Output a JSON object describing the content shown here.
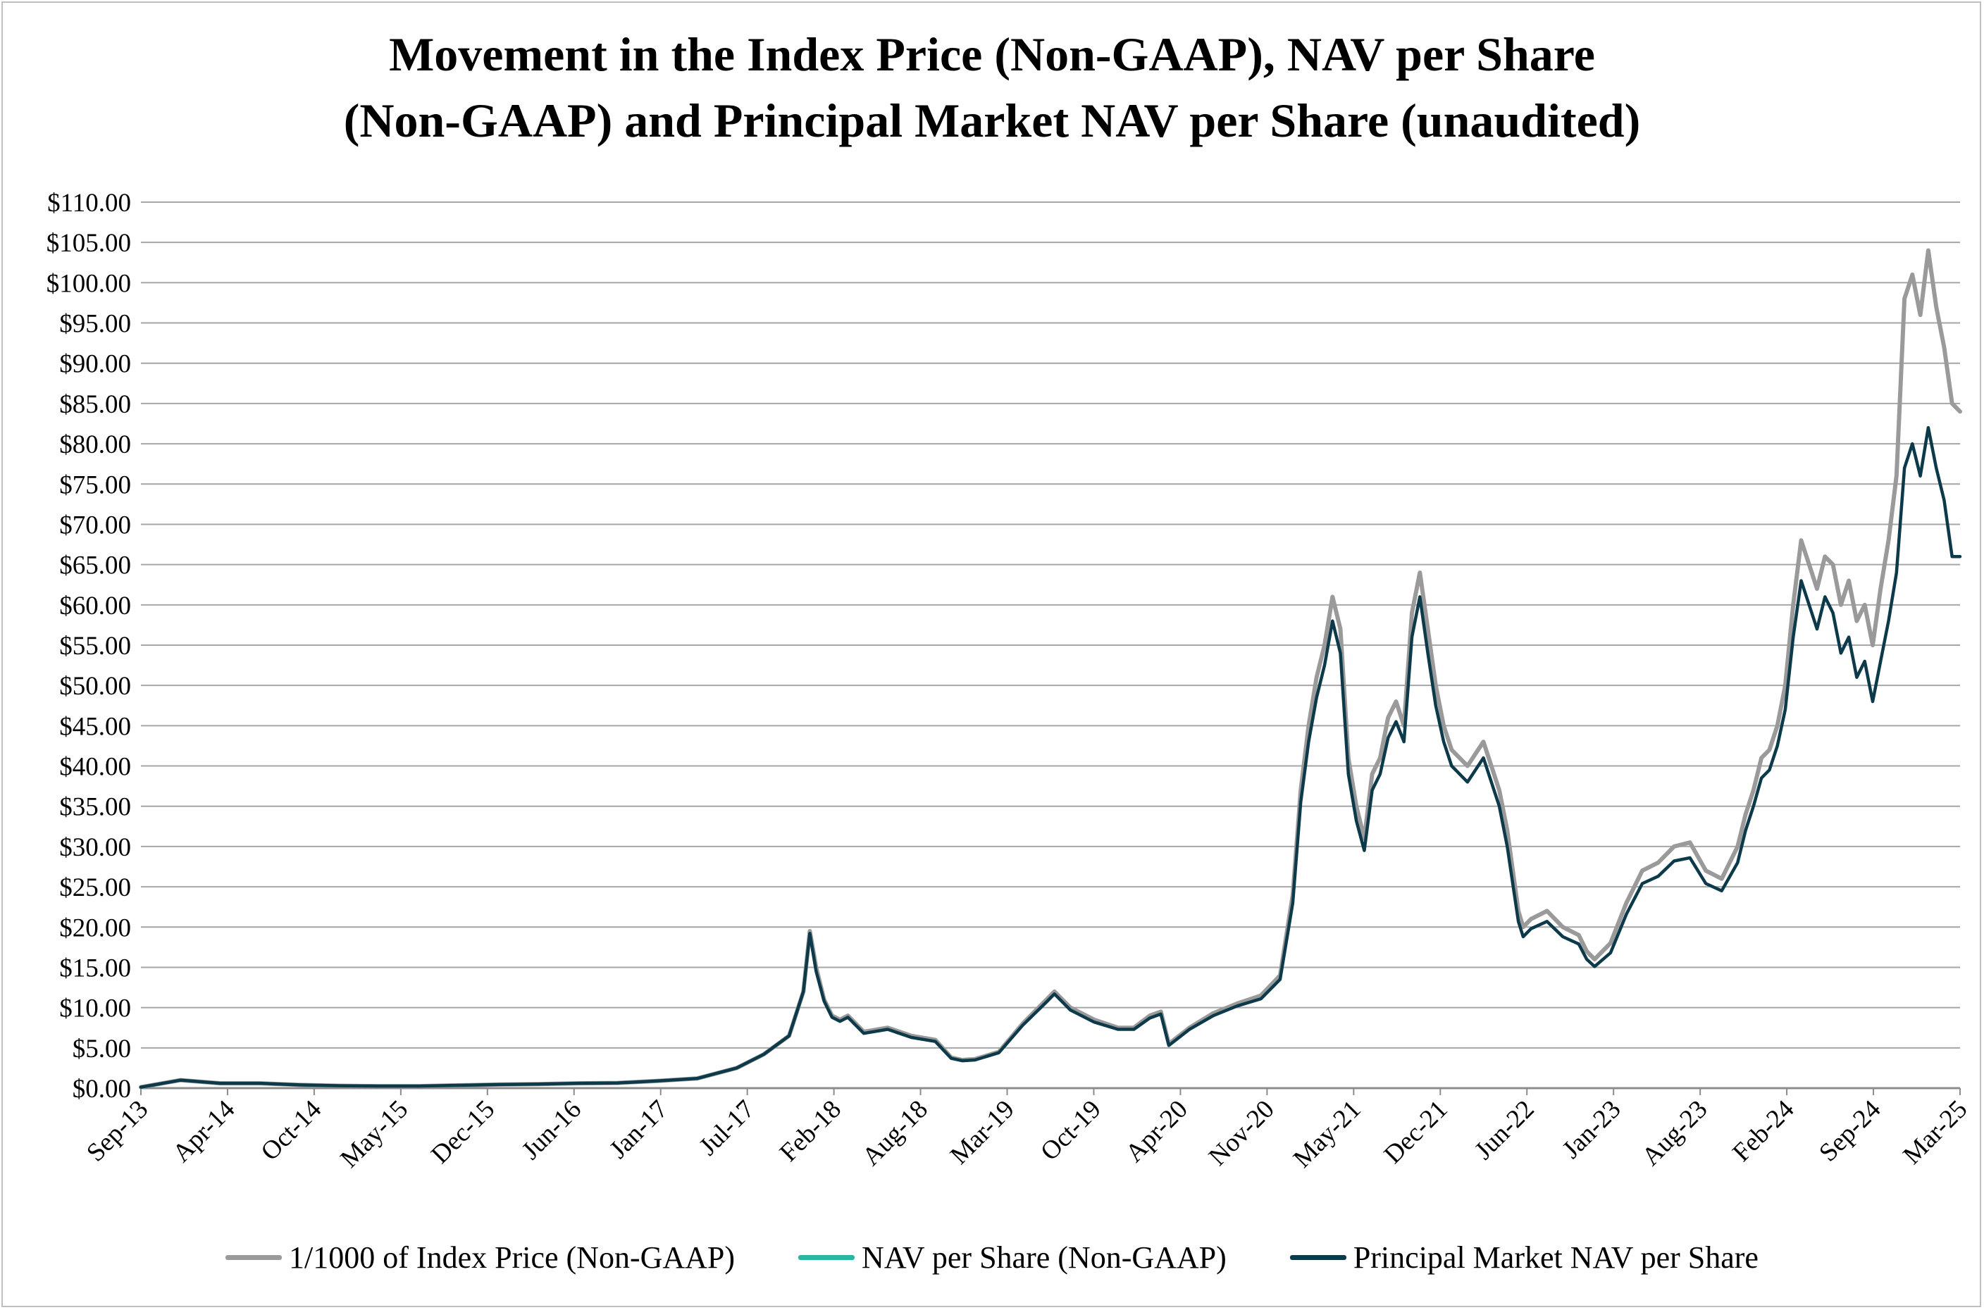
{
  "chart_data": {
    "type": "line",
    "title": "Movement in the Index Price (Non-GAAP), NAV per Share (Non-GAAP) and Principal Market NAV per Share (unaudited)",
    "title_lines": [
      "Movement in the Index Price (Non-GAAP), NAV per Share",
      "(Non-GAAP) and Principal Market NAV per Share (unaudited)"
    ],
    "xlabel": "",
    "ylabel": "",
    "ylim": [
      0,
      110
    ],
    "y_step": 5,
    "y_tick_labels": [
      "$0.00",
      "$5.00",
      "$10.00",
      "$15.00",
      "$20.00",
      "$25.00",
      "$30.00",
      "$35.00",
      "$40.00",
      "$45.00",
      "$50.00",
      "$55.00",
      "$60.00",
      "$65.00",
      "$70.00",
      "$75.00",
      "$80.00",
      "$85.00",
      "$90.00",
      "$95.00",
      "$100.00",
      "$105.00",
      "$110.00"
    ],
    "x_tick_labels": [
      "Sep-13",
      "Apr-14",
      "Oct-14",
      "May-15",
      "Dec-15",
      "Jun-16",
      "Jan-17",
      "Jul-17",
      "Feb-18",
      "Aug-18",
      "Mar-19",
      "Oct-19",
      "Apr-20",
      "Nov-20",
      "May-21",
      "Dec-21",
      "Jun-22",
      "Jan-23",
      "Aug-23",
      "Feb-24",
      "Sep-24",
      "Mar-25"
    ],
    "grid": true,
    "legend_position": "bottom",
    "x": [
      2013.75,
      2014.0,
      2014.25,
      2014.5,
      2014.75,
      2015.0,
      2015.25,
      2015.5,
      2015.75,
      2016.0,
      2016.25,
      2016.5,
      2016.75,
      2017.0,
      2017.25,
      2017.5,
      2017.67,
      2017.83,
      2017.92,
      2017.96,
      2018.0,
      2018.05,
      2018.1,
      2018.15,
      2018.2,
      2018.3,
      2018.45,
      2018.6,
      2018.75,
      2018.85,
      2018.92,
      2019.0,
      2019.15,
      2019.3,
      2019.45,
      2019.5,
      2019.6,
      2019.75,
      2019.9,
      2020.0,
      2020.1,
      2020.17,
      2020.22,
      2020.35,
      2020.5,
      2020.65,
      2020.8,
      2020.92,
      2021.0,
      2021.05,
      2021.1,
      2021.15,
      2021.2,
      2021.25,
      2021.3,
      2021.35,
      2021.4,
      2021.45,
      2021.5,
      2021.55,
      2021.6,
      2021.65,
      2021.7,
      2021.75,
      2021.8,
      2021.85,
      2021.9,
      2021.95,
      2022.0,
      2022.1,
      2022.2,
      2022.3,
      2022.35,
      2022.42,
      2022.45,
      2022.5,
      2022.6,
      2022.7,
      2022.8,
      2022.85,
      2022.9,
      2023.0,
      2023.1,
      2023.2,
      2023.3,
      2023.4,
      2023.5,
      2023.6,
      2023.7,
      2023.8,
      2023.85,
      2023.9,
      2023.95,
      2024.0,
      2024.05,
      2024.1,
      2024.15,
      2024.2,
      2024.25,
      2024.3,
      2024.35,
      2024.4,
      2024.45,
      2024.5,
      2024.55,
      2024.6,
      2024.65,
      2024.7,
      2024.75,
      2024.8,
      2024.85,
      2024.9,
      2024.95,
      2025.0,
      2025.05,
      2025.1,
      2025.15,
      2025.2
    ],
    "series": [
      {
        "name": "1/1000 of Index Price (Non-GAAP)",
        "color": "#9a9a9a",
        "values": [
          0.12,
          1.0,
          0.6,
          0.6,
          0.4,
          0.3,
          0.25,
          0.25,
          0.35,
          0.45,
          0.5,
          0.6,
          0.65,
          0.9,
          1.2,
          2.5,
          4.2,
          6.5,
          12.0,
          19.5,
          15.0,
          11.0,
          9.0,
          8.5,
          9.0,
          7.0,
          7.5,
          6.5,
          6.0,
          3.8,
          3.5,
          3.6,
          4.5,
          8.0,
          11.0,
          12.0,
          10.0,
          8.5,
          7.5,
          7.5,
          9.0,
          9.5,
          5.5,
          7.5,
          9.3,
          10.5,
          11.5,
          14.0,
          24.0,
          37.0,
          45.0,
          51.0,
          55.0,
          61.0,
          57.0,
          41.0,
          35.0,
          31.0,
          39.0,
          41.0,
          46.0,
          48.0,
          45.0,
          59.0,
          64.0,
          57.0,
          50.0,
          45.0,
          42.0,
          40.0,
          43.0,
          37.0,
          32.0,
          22.0,
          20.0,
          21.0,
          22.0,
          20.0,
          19.0,
          17.0,
          16.0,
          18.0,
          23.0,
          27.0,
          28.0,
          30.0,
          30.5,
          27.0,
          26.0,
          30.0,
          34.0,
          37.0,
          41.0,
          42.0,
          45.0,
          50.0,
          60.0,
          68.0,
          65.0,
          62.0,
          66.0,
          65.0,
          60.0,
          63.0,
          58.0,
          60.0,
          55.0,
          62.0,
          68.0,
          76.0,
          98.0,
          101.0,
          96.0,
          104.0,
          97.0,
          92.0,
          85.0,
          84.0
        ]
      },
      {
        "name": "NAV per Share (Non-GAAP)",
        "color": "#2ab5a3",
        "values": [
          0.12,
          1.0,
          0.6,
          0.6,
          0.4,
          0.3,
          0.25,
          0.25,
          0.35,
          0.45,
          0.5,
          0.6,
          0.65,
          0.9,
          1.2,
          2.5,
          4.2,
          6.5,
          12.0,
          19.2,
          14.5,
          10.8,
          8.8,
          8.3,
          8.8,
          6.8,
          7.3,
          6.3,
          5.8,
          3.7,
          3.4,
          3.5,
          4.4,
          7.8,
          10.7,
          11.7,
          9.7,
          8.2,
          7.3,
          7.3,
          8.7,
          9.2,
          5.3,
          7.3,
          9.0,
          10.2,
          11.1,
          13.5,
          23.0,
          35.5,
          43.0,
          48.5,
          52.5,
          58.0,
          54.0,
          39.0,
          33.2,
          29.5,
          37.0,
          39.0,
          43.5,
          45.5,
          43.0,
          56.0,
          61.0,
          54.0,
          47.5,
          43.0,
          40.0,
          38.0,
          41.0,
          35.0,
          30.0,
          20.7,
          18.8,
          19.8,
          20.7,
          18.8,
          17.9,
          16.0,
          15.1,
          16.8,
          21.6,
          25.4,
          26.3,
          28.2,
          28.6,
          25.4,
          24.5,
          28.0,
          32.0,
          35.0,
          38.5,
          39.5,
          42.5,
          47.0,
          56.0,
          63.0,
          60.0,
          57.0,
          61.0,
          59.0,
          54.0,
          56.0,
          51.0,
          53.0,
          48.0,
          53.0,
          58.0,
          64.0,
          77.0,
          80.0,
          76.0,
          82.0,
          77.0,
          73.0,
          66.0,
          66.0
        ]
      },
      {
        "name": "Principal Market NAV per Share",
        "color": "#0d3a4a",
        "values": [
          0.12,
          1.0,
          0.6,
          0.6,
          0.4,
          0.3,
          0.25,
          0.25,
          0.35,
          0.45,
          0.5,
          0.6,
          0.65,
          0.9,
          1.2,
          2.5,
          4.2,
          6.5,
          12.0,
          19.2,
          14.5,
          10.8,
          8.8,
          8.3,
          8.8,
          6.8,
          7.3,
          6.3,
          5.8,
          3.7,
          3.4,
          3.5,
          4.4,
          7.8,
          10.7,
          11.7,
          9.7,
          8.2,
          7.3,
          7.3,
          8.7,
          9.2,
          5.3,
          7.3,
          9.0,
          10.2,
          11.1,
          13.5,
          23.0,
          35.5,
          43.0,
          48.5,
          52.5,
          58.0,
          54.0,
          39.0,
          33.2,
          29.5,
          37.0,
          39.0,
          43.5,
          45.5,
          43.0,
          56.0,
          61.0,
          54.0,
          47.5,
          43.0,
          40.0,
          38.0,
          41.0,
          35.0,
          30.0,
          20.7,
          18.8,
          19.8,
          20.7,
          18.8,
          17.9,
          16.0,
          15.1,
          16.8,
          21.6,
          25.4,
          26.3,
          28.2,
          28.6,
          25.4,
          24.5,
          28.0,
          32.0,
          35.0,
          38.5,
          39.5,
          42.5,
          47.0,
          56.0,
          63.0,
          60.0,
          57.0,
          61.0,
          59.0,
          54.0,
          56.0,
          51.0,
          53.0,
          48.0,
          53.0,
          58.0,
          64.0,
          77.0,
          80.0,
          76.0,
          82.0,
          77.0,
          73.0,
          66.0,
          66.0
        ]
      }
    ]
  }
}
